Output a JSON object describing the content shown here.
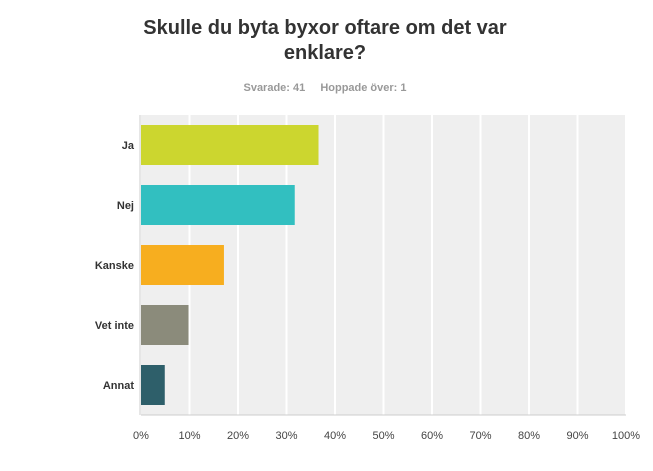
{
  "header": {
    "title_line1": "Skulle du byta byxor oftare om det  var",
    "title_line2": "enklare?",
    "answered": "Svarade: 41",
    "skipped": "Hoppade över: 1"
  },
  "chart_data": {
    "type": "bar",
    "orientation": "horizontal",
    "title": "Skulle du byta byxor oftare om det  var enklare?",
    "categories": [
      "Ja",
      "Nej",
      "Kanske",
      "Vet inte",
      "Annat"
    ],
    "values": [
      36.6,
      31.7,
      17.1,
      9.8,
      4.9
    ],
    "colors": [
      "#ccd62f",
      "#32bfc0",
      "#f7ae1f",
      "#8b8b7b",
      "#2e5f6a"
    ],
    "xlim": [
      0,
      100
    ],
    "x_ticks": [
      "0%",
      "10%",
      "20%",
      "30%",
      "40%",
      "50%",
      "60%",
      "70%",
      "80%",
      "90%",
      "100%"
    ],
    "grid": true,
    "plot_background": "#efefef"
  }
}
